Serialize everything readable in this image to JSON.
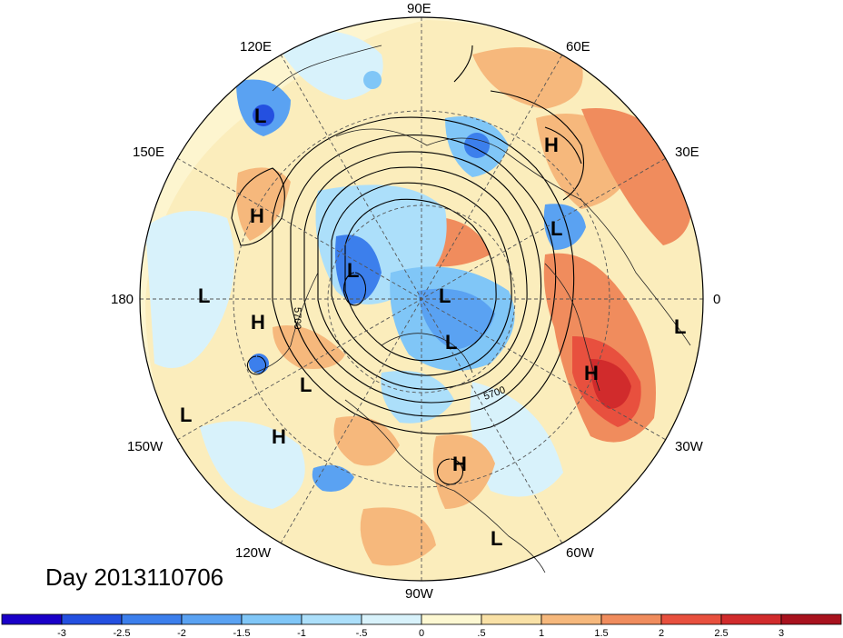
{
  "title": "Day 2013110706",
  "longitude_labels": {
    "top": "90E",
    "top_left": "120E",
    "top_right": "60E",
    "upper_left": "150E",
    "upper_right": "30E",
    "left": "180",
    "right": "0",
    "lower_left": "150W",
    "lower_right": "30W",
    "bottom_left": "120W",
    "bottom_right": "60W",
    "bottom": "90W"
  },
  "contour_labels": [
    "5700",
    "5700"
  ],
  "pressure_centers": {
    "high": "H",
    "low": "L"
  },
  "colorbar": {
    "ticks": [
      "-3",
      "-2.5",
      "-2",
      "-1.5",
      "-1",
      "-.5",
      "0",
      ".5",
      "1",
      "1.5",
      "2",
      "2.5",
      "3"
    ],
    "colors": [
      "#1a00c8",
      "#2450e0",
      "#3c7fec",
      "#5aa2f2",
      "#80c6f7",
      "#acdffa",
      "#d8f2fb",
      "#fdf8d2",
      "#f9e1a6",
      "#f6b87c",
      "#f08c5d",
      "#e8503e",
      "#d12b2c",
      "#a8121e"
    ]
  },
  "colors": {
    "warm_anomaly": "#f08c5d",
    "strong_warm": "#d12b2c",
    "cool_anomaly": "#80c6f7",
    "strong_cool": "#2450e0",
    "neutral": "#fdf8d2"
  }
}
